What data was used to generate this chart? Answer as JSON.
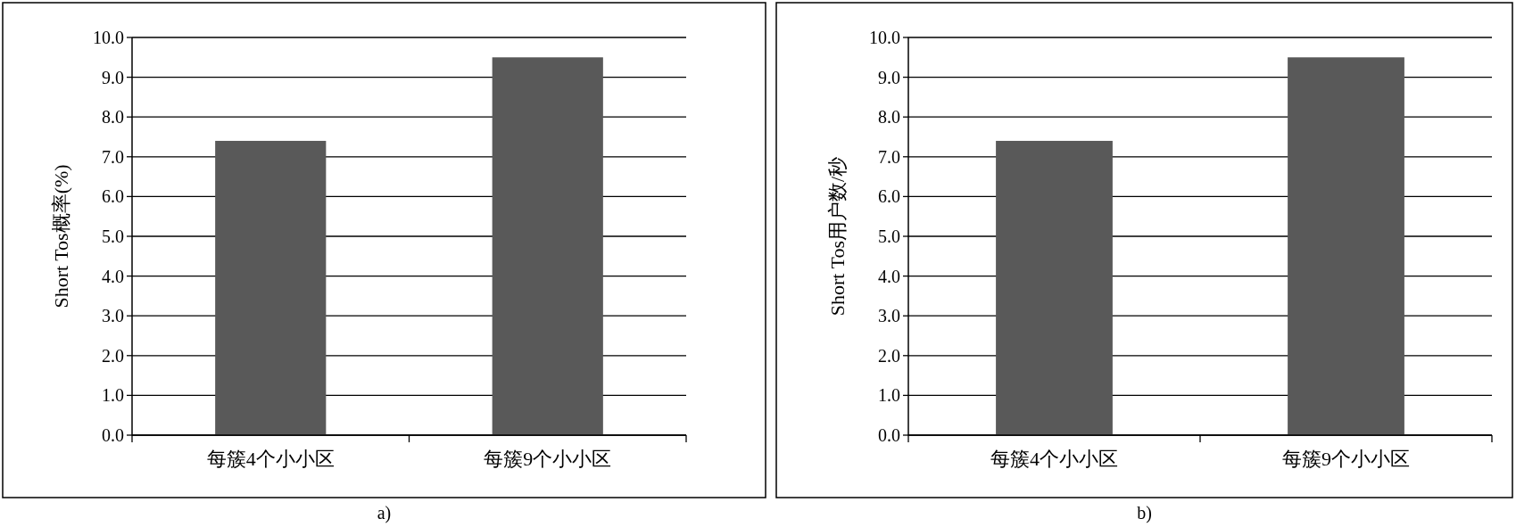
{
  "chart_data": [
    {
      "type": "bar",
      "ylabel": "Short Tos概率(%)",
      "categories": [
        "每簇4个小小区",
        "每簇9个小小区"
      ],
      "values": [
        7.4,
        9.5
      ],
      "color": "#595959",
      "ylim": [
        0,
        10
      ],
      "yticks": [
        {
          "value": 0,
          "label": "0.0"
        },
        {
          "value": 1,
          "label": "1.0"
        },
        {
          "value": 2,
          "label": "2.0"
        },
        {
          "value": 3,
          "label": "3.0"
        },
        {
          "value": 4,
          "label": "4.0"
        },
        {
          "value": 5,
          "label": "5.0"
        },
        {
          "value": 6,
          "label": "6.0"
        },
        {
          "value": 7,
          "label": "7.0"
        },
        {
          "value": 8,
          "label": "8.0"
        },
        {
          "value": 9,
          "label": "9.0"
        },
        {
          "value": 10,
          "label": "10.0"
        }
      ],
      "grid": "y",
      "annotations": [
        "a)"
      ]
    },
    {
      "type": "bar",
      "ylabel": "Short Tos用户数/秒",
      "categories": [
        "每簇4个小小区",
        "每簇9个小小区"
      ],
      "values": [
        7.4,
        9.5
      ],
      "color": "#595959",
      "ylim": [
        0,
        10
      ],
      "yticks": [
        {
          "value": 0,
          "label": "0.0"
        },
        {
          "value": 1,
          "label": "1.0"
        },
        {
          "value": 2,
          "label": "2.0"
        },
        {
          "value": 3,
          "label": "3.0"
        },
        {
          "value": 4,
          "label": "4.0"
        },
        {
          "value": 5,
          "label": "5.0"
        },
        {
          "value": 6,
          "label": "6.0"
        },
        {
          "value": 7,
          "label": "7.0"
        },
        {
          "value": 8,
          "label": "8.0"
        },
        {
          "value": 9,
          "label": "9.0"
        },
        {
          "value": 10,
          "label": "10.0"
        }
      ],
      "grid": "y",
      "annotations": [
        "b)"
      ]
    }
  ]
}
